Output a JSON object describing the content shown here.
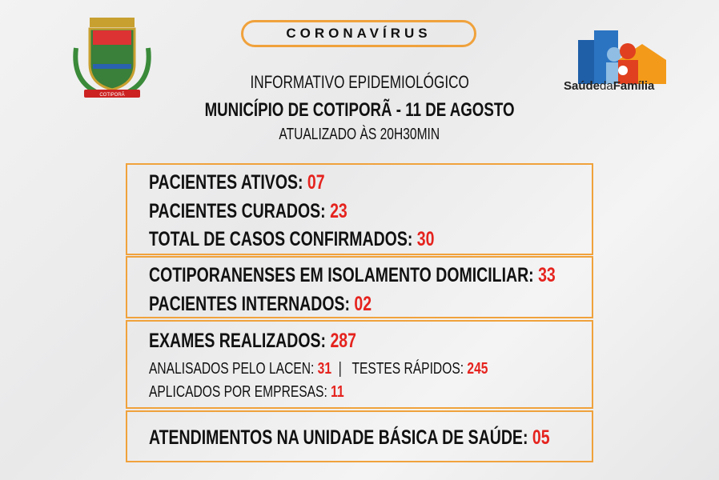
{
  "header": {
    "banner": "CORONAVÍRUS",
    "title": "INFORMATIVO EPIDEMIOLÓGICO",
    "subtitle": "MUNICÍPIO DE COTIPORÃ - 11 DE AGOSTO",
    "updated": "ATUALIZADO ÀS 20H30MIN"
  },
  "logos": {
    "left_text": "COTIPORÃ",
    "right_text_1": "Saúde",
    "right_text_2": "da",
    "right_text_3": "Família"
  },
  "box1": [
    {
      "label": "PACIENTES ATIVOS:",
      "value": "07"
    },
    {
      "label": "PACIENTES CURADOS:",
      "value": "23"
    },
    {
      "label": "TOTAL DE CASOS CONFIRMADOS:",
      "value": "30"
    }
  ],
  "box2": [
    {
      "label": "COTIPORANENSES EM ISOLAMENTO DOMICILIAR:",
      "value": "33"
    },
    {
      "label": "PACIENTES INTERNADOS:",
      "value": "02"
    }
  ],
  "box3": {
    "label": "EXAMES REALIZADOS:",
    "value": "287",
    "lacen_label": "ANALISADOS PELO LACEN:",
    "lacen_value": "31",
    "sep": "|",
    "rapid_label": "TESTES RÁPIDOS:",
    "rapid_value": "245",
    "company_label": "APLICADOS POR EMPRESAS:",
    "company_value": "11"
  },
  "box4": {
    "label": "ATENDIMENTOS NA UNIDADE BÁSICA DE SAÚDE:",
    "value": "05"
  },
  "colors": {
    "accent": "#f0a23c",
    "value": "#e5231e"
  }
}
